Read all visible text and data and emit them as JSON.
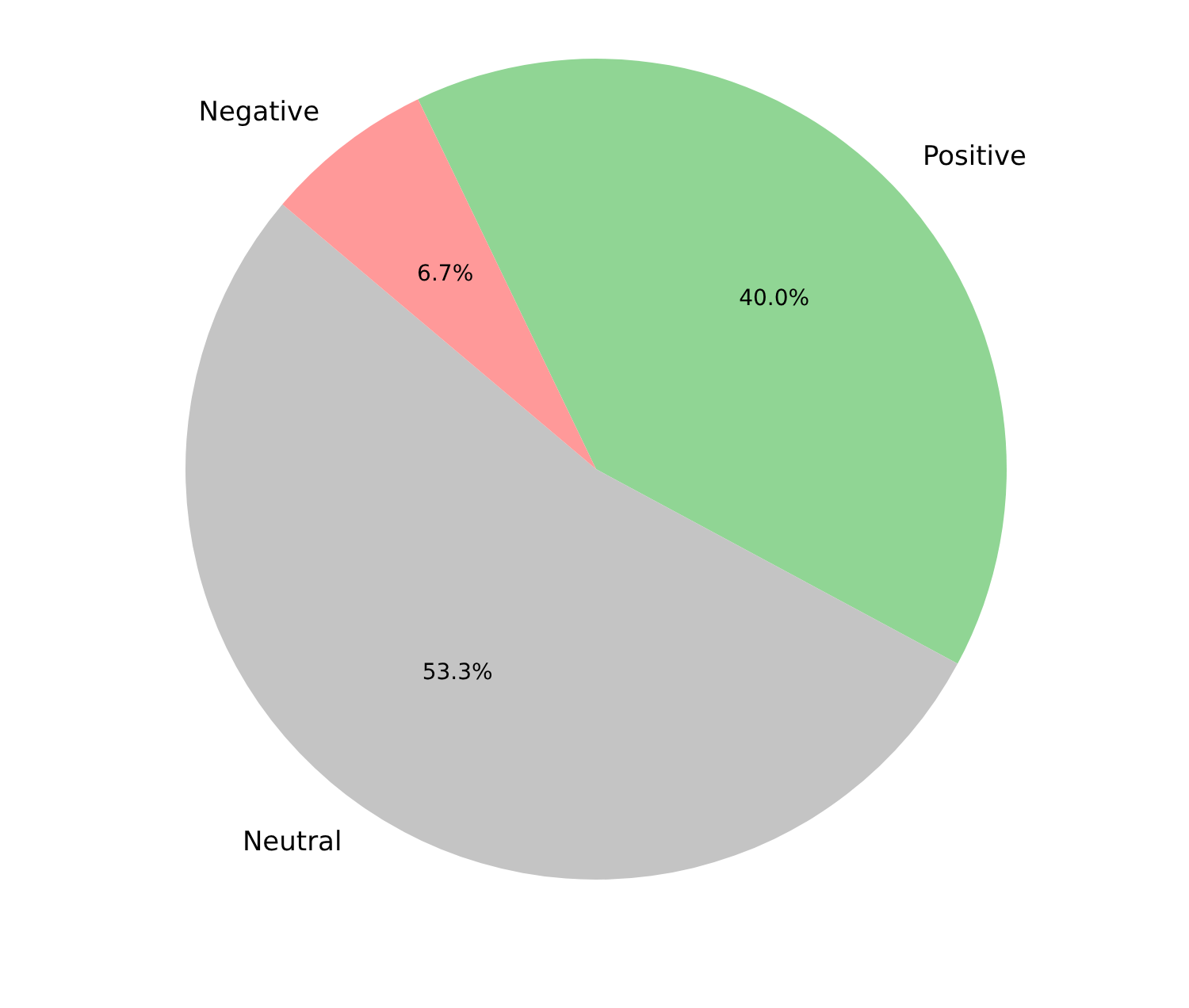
{
  "chart_data": {
    "type": "pie",
    "categories": [
      "Positive",
      "Neutral",
      "Negative"
    ],
    "values": [
      40.0,
      53.3,
      6.7
    ],
    "colors": [
      "#90d594",
      "#c4c4c4",
      "#ff9999"
    ],
    "value_labels": [
      "40.0%",
      "53.3%",
      "6.7%"
    ]
  }
}
